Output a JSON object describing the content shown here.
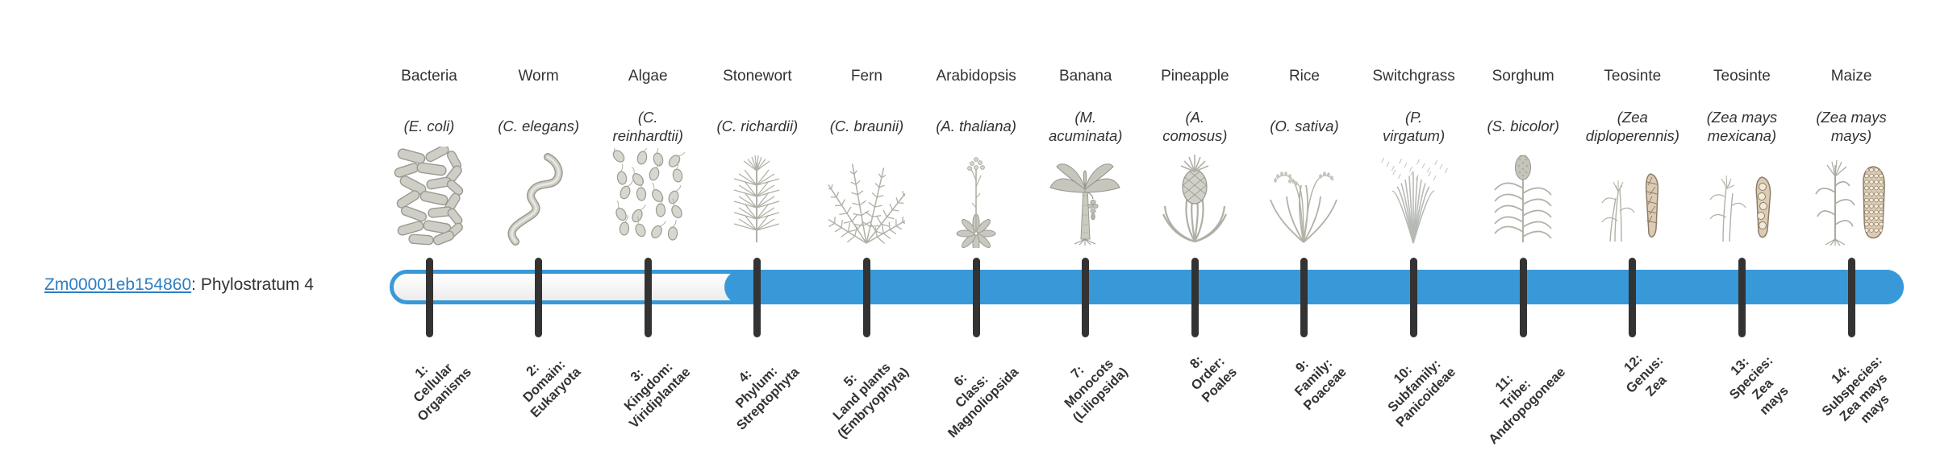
{
  "gene": {
    "id": "Zm00001eb154860",
    "suffix": ": Phylostratum 4",
    "phylostratum": 4
  },
  "colors": {
    "bar_blue": "#3999d8",
    "link_blue": "#2d7dc3",
    "tick_dark": "#333333",
    "illustration_gray": "#b5b4ab",
    "ear_beige": "#dccbb5"
  },
  "timeline": {
    "total_strata": 14,
    "filled_from_stratum": 4
  },
  "organisms": [
    {
      "common_name": "Bacteria",
      "scientific_name": "(E. coli)",
      "icon": "bacteria-icon",
      "stratum_label": "1:\nCellular\nOrganisms"
    },
    {
      "common_name": "Worm",
      "scientific_name": "(C. elegans)",
      "icon": "worm-icon",
      "stratum_label": "2:\nDomain:\nEukaryota"
    },
    {
      "common_name": "Algae",
      "scientific_name": "(C.\nreinhardtii)",
      "icon": "algae-icon",
      "stratum_label": "3:\nKingdom:\nViridiplantae"
    },
    {
      "common_name": "Stonewort",
      "scientific_name": "(C. richardii)",
      "icon": "stonewort-icon",
      "stratum_label": "4:\nPhylum:\nStreptophyta"
    },
    {
      "common_name": "Fern",
      "scientific_name": "(C. braunii)",
      "icon": "fern-icon",
      "stratum_label": "5:\nLand plants\n(Embryophyta)"
    },
    {
      "common_name": "Arabidopsis",
      "scientific_name": "(A. thaliana)",
      "icon": "arabidopsis-icon",
      "stratum_label": "6:\nClass:\nMagnoliopsida"
    },
    {
      "common_name": "Banana",
      "scientific_name": "(M.\nacuminata)",
      "icon": "banana-tree-icon",
      "stratum_label": "7:\nMonocots\n(Liliopsida)"
    },
    {
      "common_name": "Pineapple",
      "scientific_name": "(A.\ncomosus)",
      "icon": "pineapple-icon",
      "stratum_label": "8:\nOrder:\nPoales"
    },
    {
      "common_name": "Rice",
      "scientific_name": "(O. sativa)",
      "icon": "rice-icon",
      "stratum_label": "9:\nFamily:\nPoaceae"
    },
    {
      "common_name": "Switchgrass",
      "scientific_name": "(P.\nvirgatum)",
      "icon": "switchgrass-icon",
      "stratum_label": "10:\nSubfamily:\nPanicoideae"
    },
    {
      "common_name": "Sorghum",
      "scientific_name": "(S. bicolor)",
      "icon": "sorghum-icon",
      "stratum_label": "11:\nTribe:\nAndropogoneae"
    },
    {
      "common_name": "Teosinte",
      "scientific_name": "(Zea\ndiploperennis)",
      "icon": "teosinte-diploperennis-icon",
      "stratum_label": "12:\nGenus:\nZea"
    },
    {
      "common_name": "Teosinte",
      "scientific_name": "(Zea mays\nmexicana)",
      "icon": "teosinte-mexicana-icon",
      "stratum_label": "13:\nSpecies:\nZea\nmays"
    },
    {
      "common_name": "Maize",
      "scientific_name": "(Zea mays\nmays)",
      "icon": "maize-icon",
      "stratum_label": "14:\nSubspecies:\nZea mays\nmays"
    }
  ]
}
